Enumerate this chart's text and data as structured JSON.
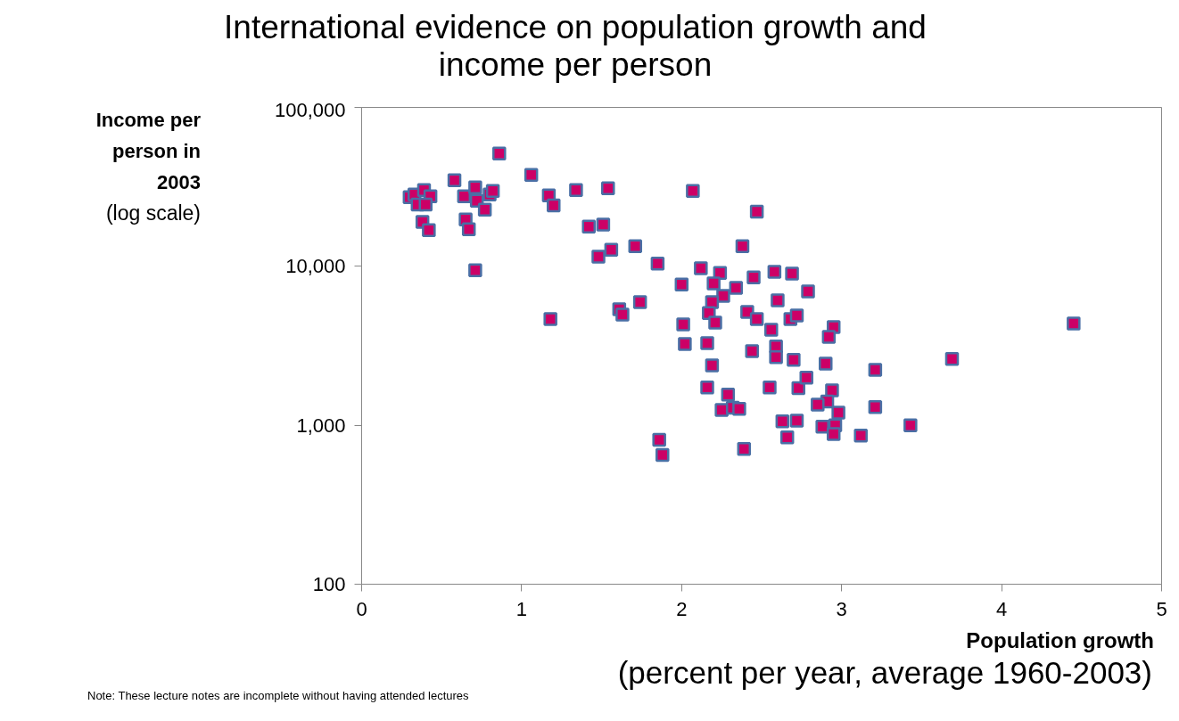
{
  "chart_data": {
    "type": "scatter",
    "title": "International evidence on population growth and\nincome per person",
    "xlabel": "Population growth\n(percent per year, average 1960-2003)",
    "ylabel": "Income per\nperson in\n2003\n(log scale)",
    "annotations": [
      "Note: These lecture notes are incomplete without having attended lectures"
    ],
    "log": "y",
    "grid": false,
    "marker": "square",
    "xlim": [
      0,
      5
    ],
    "xticks": [
      0,
      1,
      2,
      3,
      4,
      5
    ],
    "ylim": [
      100,
      100000
    ],
    "yticks": [
      {
        "value": 100,
        "label": "100"
      },
      {
        "value": 1000,
        "label": "1,000"
      },
      {
        "value": 10000,
        "label": "10,000"
      },
      {
        "value": 100000,
        "label": "100,000"
      }
    ],
    "series": [
      {
        "color": "#cc0066",
        "x": [
          0.3,
          0.33,
          0.39,
          0.43,
          0.35,
          0.4,
          0.38,
          0.42,
          0.58,
          0.64,
          0.71,
          0.72,
          0.77,
          0.8,
          0.82,
          0.65,
          0.67,
          0.71,
          0.86,
          1.06,
          1.17,
          1.2,
          1.34,
          1.54,
          1.42,
          1.51,
          1.48,
          1.56,
          1.71,
          1.85,
          2.07,
          2.47,
          2.38,
          1.18,
          1.61,
          1.63,
          1.74,
          2.12,
          2.24,
          2.0,
          2.2,
          2.34,
          2.45,
          2.58,
          2.69,
          2.79,
          2.26,
          2.19,
          2.17,
          2.21,
          2.6,
          2.41,
          2.47,
          2.68,
          2.72,
          2.56,
          2.95,
          2.92,
          2.01,
          2.02,
          2.16,
          2.44,
          2.59,
          2.59,
          2.7,
          2.9,
          3.21,
          2.19,
          2.16,
          2.29,
          2.25,
          2.32,
          2.36,
          2.55,
          2.73,
          2.78,
          2.94,
          2.91,
          2.85,
          2.98,
          3.21,
          2.63,
          2.72,
          2.88,
          2.96,
          2.95,
          3.12,
          2.66,
          3.43,
          2.39,
          1.88,
          1.86,
          3.69,
          4.45
        ],
        "values": [
          27200,
          28300,
          30200,
          27600,
          24500,
          24500,
          19000,
          16900,
          34800,
          27600,
          31400,
          25900,
          22700,
          28300,
          29800,
          19700,
          17100,
          9460,
          51200,
          37600,
          27900,
          24200,
          30200,
          31000,
          17800,
          18300,
          11500,
          12700,
          13400,
          10400,
          29800,
          22100,
          13400,
          4660,
          5370,
          4970,
          5950,
          9710,
          9100,
          7690,
          7800,
          7310,
          8530,
          9220,
          8990,
          6950,
          6520,
          5950,
          5090,
          4430,
          6110,
          5160,
          4660,
          4660,
          4910,
          3990,
          4150,
          3600,
          4310,
          3240,
          3290,
          2930,
          3130,
          2680,
          2580,
          2440,
          2230,
          2380,
          1730,
          1560,
          1250,
          1290,
          1270,
          1730,
          1710,
          1990,
          1660,
          1410,
          1350,
          1200,
          1300,
          1060,
          1070,
          980,
          1000,
          880,
          860,
          840,
          1000,
          710,
          650,
          810,
          2610,
          4370
        ]
      }
    ]
  }
}
